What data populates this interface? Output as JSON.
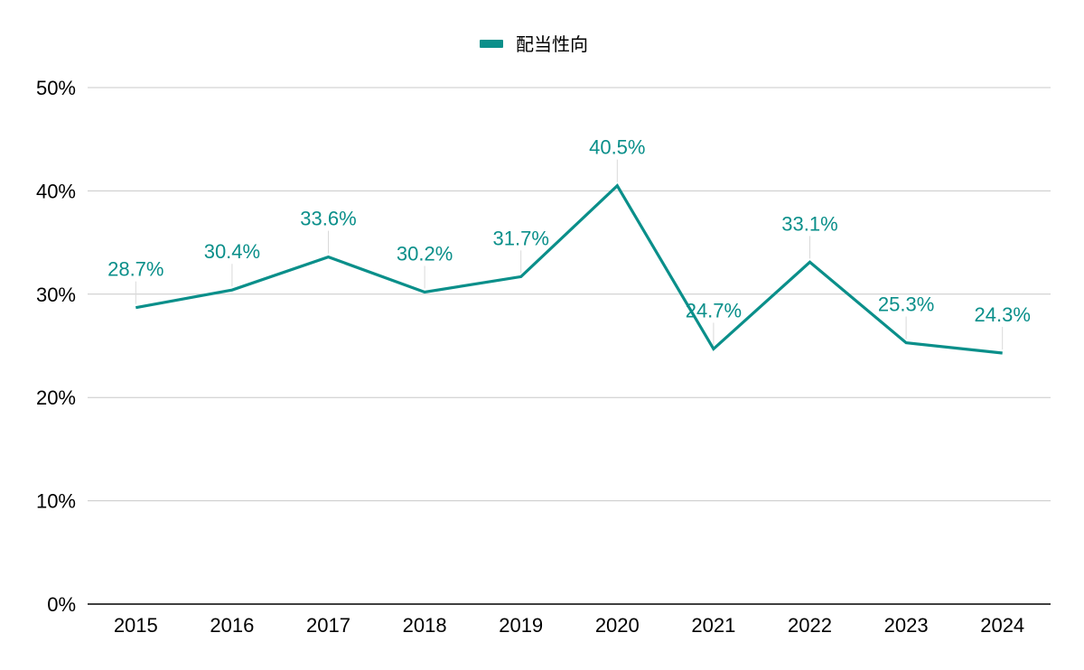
{
  "legend": {
    "label": "配当性向"
  },
  "colors": {
    "series": "#0a8f8a",
    "grid": "#c8c8c8",
    "axis": "#000000",
    "leader": "#d9d9d9"
  },
  "chart_data": {
    "type": "line",
    "categories": [
      "2015",
      "2016",
      "2017",
      "2018",
      "2019",
      "2020",
      "2021",
      "2022",
      "2023",
      "2024"
    ],
    "series": [
      {
        "name": "配当性向",
        "values": [
          28.7,
          30.4,
          33.6,
          30.2,
          31.7,
          40.5,
          24.7,
          33.1,
          25.3,
          24.3
        ],
        "labels": [
          "28.7%",
          "30.4%",
          "33.6%",
          "30.2%",
          "31.7%",
          "40.5%",
          "24.7%",
          "33.1%",
          "25.3%",
          "24.3%"
        ]
      }
    ],
    "ylim": [
      0,
      50
    ],
    "yticks": [
      0,
      10,
      20,
      30,
      40,
      50
    ],
    "ytick_labels": [
      "0%",
      "10%",
      "20%",
      "30%",
      "40%",
      "50%"
    ],
    "grid": true,
    "legend_position": "top-center",
    "xlabel": "",
    "ylabel": ""
  }
}
